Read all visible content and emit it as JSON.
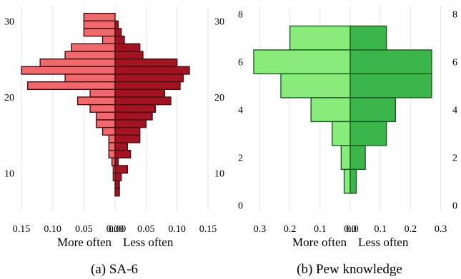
{
  "chart_data": [
    {
      "type": "bar",
      "orientation": "horizontal-diverging",
      "title": "",
      "caption": "(a) SA-6",
      "xlabel_left": "More often",
      "xlabel_right": "Less often",
      "xlim_left": [
        0.15,
        0
      ],
      "xlim_right": [
        0,
        0.15
      ],
      "x_ticks_left": [
        "0.15",
        "0.10",
        "0.05",
        "0.00"
      ],
      "x_ticks_right": [
        "0.00",
        "0.05",
        "0.10",
        "0.15"
      ],
      "y_ticks_left": [
        "10",
        "20",
        "30"
      ],
      "y_ticks_right": [
        "10",
        "20",
        "30"
      ],
      "ylim": [
        5,
        32
      ],
      "grid": "vertical",
      "series": [
        {
          "name": "More often",
          "color": "#f0696c",
          "bins": [
            [
              30,
              31,
              0.05
            ],
            [
              29,
              30,
              0.05
            ],
            [
              28,
              29,
              0.05
            ],
            [
              27,
              28,
              0.02
            ],
            [
              26,
              27,
              0.07
            ],
            [
              25,
              26,
              0.08
            ],
            [
              24,
              25,
              0.12
            ],
            [
              23,
              24,
              0.15
            ],
            [
              22,
              23,
              0.08
            ],
            [
              21,
              22,
              0.14
            ],
            [
              20,
              21,
              0.04
            ],
            [
              19,
              20,
              0.06
            ],
            [
              18,
              19,
              0.04
            ],
            [
              17,
              18,
              0.03
            ],
            [
              16,
              17,
              0.03
            ],
            [
              15,
              16,
              0.02
            ],
            [
              14,
              15,
              0.01
            ],
            [
              13,
              14,
              0.01
            ],
            [
              12,
              13,
              0.01
            ],
            [
              11,
              12,
              0.005
            ],
            [
              10,
              11,
              0.003
            ],
            [
              9,
              10,
              0.003
            ]
          ]
        },
        {
          "name": "Less often",
          "color": "#a01521",
          "bins": [
            [
              30,
              31,
              0.0
            ],
            [
              29,
              30,
              0.005
            ],
            [
              28,
              29,
              0.01
            ],
            [
              27,
              28,
              0.015
            ],
            [
              26,
              27,
              0.04
            ],
            [
              25,
              26,
              0.045
            ],
            [
              24,
              25,
              0.1
            ],
            [
              23,
              24,
              0.12
            ],
            [
              22,
              23,
              0.11
            ],
            [
              21,
              22,
              0.105
            ],
            [
              20,
              21,
              0.08
            ],
            [
              19,
              20,
              0.09
            ],
            [
              18,
              19,
              0.065
            ],
            [
              17,
              18,
              0.06
            ],
            [
              16,
              17,
              0.05
            ],
            [
              15,
              16,
              0.04
            ],
            [
              14,
              15,
              0.04
            ],
            [
              13,
              14,
              0.02
            ],
            [
              12,
              13,
              0.025
            ],
            [
              11,
              12,
              0.005
            ],
            [
              10,
              11,
              0.02
            ],
            [
              9,
              10,
              0.01
            ],
            [
              8,
              9,
              0.007
            ],
            [
              7,
              8,
              0.007
            ]
          ]
        }
      ]
    },
    {
      "type": "bar",
      "orientation": "horizontal-diverging",
      "title": "",
      "caption": "(b) Pew knowledge",
      "xlabel_left": "More often",
      "xlabel_right": "Less often",
      "xlim_left": [
        0.32,
        0
      ],
      "xlim_right": [
        0,
        0.32
      ],
      "x_ticks_left": [
        "0.3",
        "0.2",
        "0.1",
        "0.0"
      ],
      "x_ticks_right": [
        "0.0",
        "0.1",
        "0.2",
        "0.3"
      ],
      "y_ticks_left": [
        "0",
        "2",
        "4",
        "6",
        "8"
      ],
      "y_ticks_right": [
        "0",
        "2",
        "4",
        "6",
        "8"
      ],
      "ylim": [
        -0.25,
        8.35
      ],
      "grid": "vertical",
      "series": [
        {
          "name": "More often",
          "color": "#88ec7b",
          "bins": [
            [
              6.5,
              7.5,
              0.2
            ],
            [
              5.5,
              6.5,
              0.32
            ],
            [
              4.5,
              5.5,
              0.23
            ],
            [
              3.5,
              4.5,
              0.13
            ],
            [
              2.5,
              3.5,
              0.06
            ],
            [
              1.5,
              2.5,
              0.03
            ],
            [
              0.5,
              1.5,
              0.02
            ]
          ]
        },
        {
          "name": "Less often",
          "color": "#3bb64a",
          "bins": [
            [
              6.5,
              7.5,
              0.12
            ],
            [
              5.5,
              6.5,
              0.27
            ],
            [
              4.5,
              5.5,
              0.27
            ],
            [
              3.5,
              4.5,
              0.15
            ],
            [
              2.5,
              3.5,
              0.12
            ],
            [
              1.5,
              2.5,
              0.05
            ],
            [
              0.5,
              1.5,
              0.02
            ]
          ]
        }
      ]
    }
  ]
}
